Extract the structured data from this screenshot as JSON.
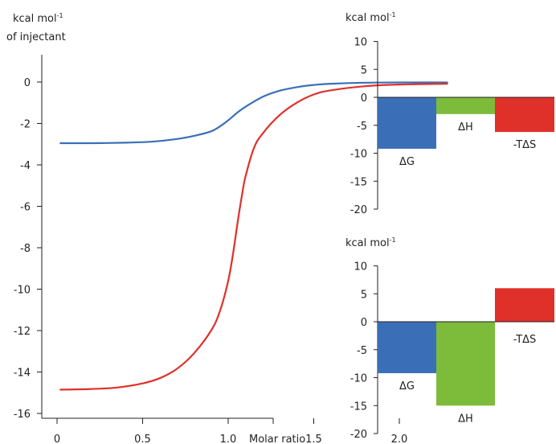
{
  "chart_data": [
    {
      "type": "line",
      "ylabel": "kcal mol",
      "ylabel_sup": "-1",
      "ylabel_line2": "of injectant",
      "xlabel": "Molar ratio",
      "xlim": [
        0,
        2.3
      ],
      "ylim": [
        -16,
        0
      ],
      "xticks": [
        "0",
        "0.5",
        "1.0",
        "1.5",
        "2.0"
      ],
      "yticks": [
        "0",
        "-2",
        "-4",
        "-6",
        "-8",
        "-10",
        "-12",
        "-14",
        "-16"
      ],
      "series": [
        {
          "color": "#3a6fb8",
          "x": [
            0.02,
            0.2,
            0.4,
            0.55,
            0.7,
            0.8,
            0.9,
            0.95,
            1.0,
            1.05,
            1.1,
            1.2,
            1.3,
            1.4,
            1.5,
            1.6,
            1.8,
            2.0,
            2.28
          ],
          "y": [
            -2.95,
            -2.95,
            -2.93,
            -2.88,
            -2.75,
            -2.6,
            -2.38,
            -2.15,
            -1.85,
            -1.5,
            -1.2,
            -0.72,
            -0.42,
            -0.25,
            -0.14,
            -0.08,
            -0.03,
            -0.02,
            -0.02
          ]
        },
        {
          "color": "#e0302a",
          "x": [
            0.02,
            0.2,
            0.35,
            0.5,
            0.6,
            0.7,
            0.8,
            0.9,
            0.95,
            1.0,
            1.03,
            1.06,
            1.08,
            1.1,
            1.15,
            1.2,
            1.3,
            1.4,
            1.5,
            1.6,
            1.8,
            2.0,
            2.28
          ],
          "y": [
            -14.85,
            -14.82,
            -14.75,
            -14.55,
            -14.3,
            -13.85,
            -13.1,
            -12.0,
            -11.1,
            -9.6,
            -8.2,
            -6.5,
            -5.5,
            -4.6,
            -3.2,
            -2.5,
            -1.6,
            -1.0,
            -0.6,
            -0.4,
            -0.2,
            -0.12,
            -0.08
          ]
        }
      ]
    },
    {
      "type": "bar",
      "ylabel": "kcal mol",
      "ylabel_sup": "-1",
      "ylim": [
        -20,
        10
      ],
      "yticks": [
        "10",
        "5",
        "0",
        "-5",
        "-10",
        "-15",
        "-20"
      ],
      "categories": [
        "ΔG",
        "ΔH",
        "-TΔS"
      ],
      "values": [
        -9.2,
        -3,
        -6.2
      ],
      "colors": [
        "#3a6fb8",
        "#7dbb3b",
        "#e0302a"
      ]
    },
    {
      "type": "bar",
      "ylabel": "kcal mol",
      "ylabel_sup": "-1",
      "ylim": [
        -20,
        10
      ],
      "yticks": [
        "10",
        "5",
        "0",
        "-5",
        "-10",
        "-15",
        "-20"
      ],
      "categories": [
        "ΔG",
        "ΔH",
        "-TΔS"
      ],
      "values": [
        -9.2,
        -15,
        6
      ],
      "colors": [
        "#3a6fb8",
        "#7dbb3b",
        "#e0302a"
      ]
    }
  ]
}
